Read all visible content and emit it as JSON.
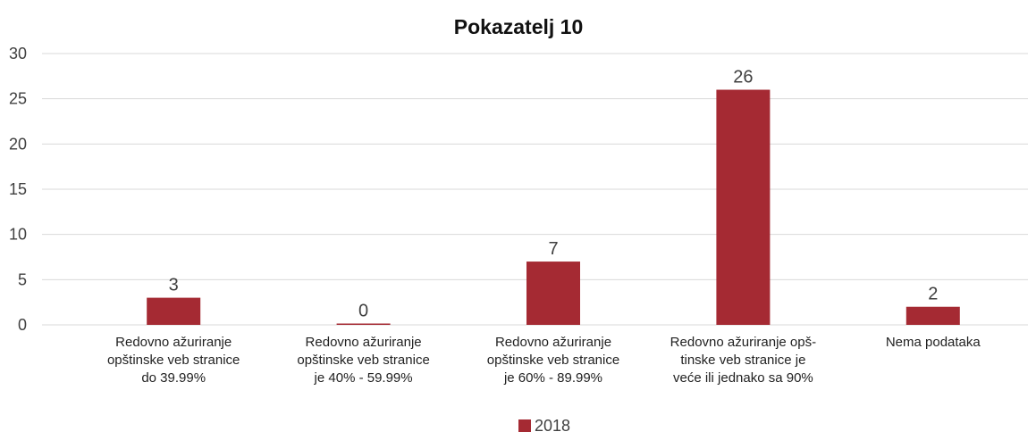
{
  "chart_data": {
    "type": "bar",
    "title": "Pokazatelj 10",
    "categories": [
      "Redovno ažuriranje\nopštinske veb stranice\ndo 39.99%",
      "Redovno ažuriranje\nopštinske veb stranice\nje 40% - 59.99%",
      "Redovno ažuriranje\nopštinske veb stranice\nje 60% - 89.99%",
      "Redovno ažuriranje opš-\ntinske veb stranice je\nveće ili jednako sa 90%",
      "Nema podataka"
    ],
    "series": [
      {
        "name": "2018",
        "color": "#a52a33",
        "values": [
          3,
          0,
          7,
          26,
          2
        ]
      }
    ],
    "ylim": [
      0,
      30
    ],
    "yticks": [
      0,
      5,
      10,
      15,
      20,
      25,
      30
    ],
    "grid": true,
    "legend": "bottom"
  }
}
